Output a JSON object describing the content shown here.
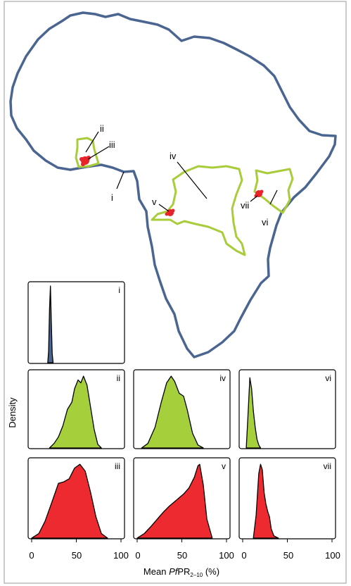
{
  "colors": {
    "frame": "#9a9a9a",
    "coast": "#4b6591",
    "country": "#a8cc3a",
    "site": "#e8232a",
    "africa_fill": "#4b6591",
    "green_fill": "#a6cf3c",
    "red_fill": "#ee2a31"
  },
  "map": {
    "labels": {
      "i": "i",
      "ii": "ii",
      "iii": "iii",
      "iv": "iv",
      "v": "v",
      "vi": "vi",
      "vii": "vii"
    }
  },
  "axes": {
    "ylabel": "Density",
    "xlabel_prefix": "Mean ",
    "xlabel_italic": "Pf",
    "xlabel_pr": "PR",
    "xlabel_sub": "2–10",
    "xlabel_suffix": " (%)",
    "x_ticks": [
      "0",
      "50",
      "100"
    ]
  },
  "chart_data": [
    {
      "type": "area",
      "panel": "i",
      "label": "i",
      "color": "blue",
      "xlim": [
        0,
        100
      ],
      "x": [
        18,
        19,
        20,
        21,
        22,
        23,
        24
      ],
      "y": [
        0,
        0.15,
        0.7,
        1.0,
        0.55,
        0.12,
        0
      ]
    },
    {
      "type": "area",
      "panel": "ii",
      "label": "ii",
      "color": "green",
      "xlim": [
        0,
        100
      ],
      "x": [
        20,
        25,
        30,
        35,
        40,
        45,
        48,
        52,
        55,
        58,
        62,
        66,
        70,
        74,
        78
      ],
      "y": [
        0,
        0.06,
        0.15,
        0.3,
        0.52,
        0.62,
        0.8,
        0.92,
        0.88,
        0.97,
        0.85,
        0.55,
        0.25,
        0.05,
        0
      ]
    },
    {
      "type": "area",
      "panel": "iii",
      "label": "iii",
      "color": "red",
      "xlim": [
        0,
        100
      ],
      "x": [
        0,
        8,
        15,
        22,
        30,
        36,
        42,
        48,
        54,
        60,
        66,
        72,
        78,
        85
      ],
      "y": [
        0,
        0.06,
        0.22,
        0.45,
        0.72,
        0.74,
        0.78,
        0.92,
        0.97,
        0.88,
        0.6,
        0.28,
        0.06,
        0
      ]
    },
    {
      "type": "area",
      "panel": "iv",
      "label": "iv",
      "color": "green",
      "xlim": [
        0,
        100
      ],
      "x": [
        5,
        12,
        20,
        27,
        33,
        38,
        42,
        47,
        52,
        56,
        62,
        68,
        74
      ],
      "y": [
        0,
        0.06,
        0.28,
        0.62,
        0.88,
        0.97,
        0.9,
        0.74,
        0.7,
        0.52,
        0.2,
        0.04,
        0
      ]
    },
    {
      "type": "area",
      "panel": "v",
      "label": "v",
      "color": "red",
      "xlim": [
        0,
        100
      ],
      "x": [
        0,
        8,
        16,
        24,
        30,
        36,
        44,
        52,
        58,
        64,
        68,
        70,
        74,
        78,
        84
      ],
      "y": [
        0,
        0.06,
        0.16,
        0.27,
        0.35,
        0.42,
        0.5,
        0.58,
        0.66,
        0.8,
        0.95,
        0.97,
        0.7,
        0.25,
        0
      ]
    },
    {
      "type": "area",
      "panel": "vi",
      "label": "vi",
      "color": "green",
      "xlim": [
        0,
        100
      ],
      "x": [
        4,
        6,
        8,
        10,
        12,
        14,
        16,
        18,
        20
      ],
      "y": [
        0,
        0.45,
        0.95,
        0.8,
        0.5,
        0.28,
        0.12,
        0.04,
        0
      ]
    },
    {
      "type": "area",
      "panel": "vii",
      "label": "vii",
      "color": "red",
      "xlim": [
        0,
        100
      ],
      "x": [
        12,
        15,
        18,
        20,
        22,
        24,
        26,
        28,
        30,
        32,
        35,
        40
      ],
      "y": [
        0,
        0.3,
        0.85,
        0.97,
        0.9,
        0.6,
        0.45,
        0.35,
        0.28,
        0.12,
        0.03,
        0
      ]
    }
  ]
}
